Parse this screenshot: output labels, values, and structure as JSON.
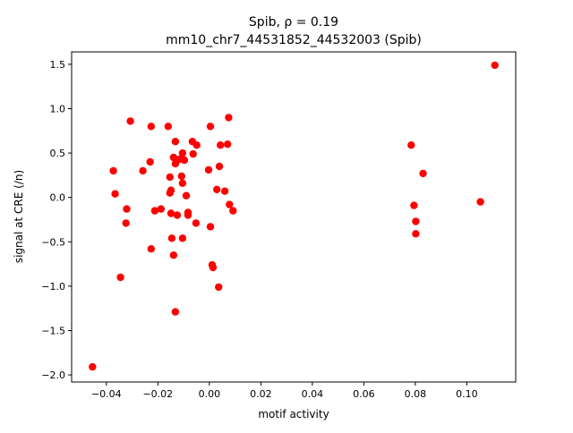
{
  "chart_data": {
    "type": "scatter",
    "title_line1": "Spib, ρ = 0.19",
    "title_line2": "mm10_chr7_44531852_44532003 (Spib)",
    "xlabel": "motif activity",
    "ylabel": "signal at CRE (/n)",
    "xlim": [
      -0.0535,
      0.119
    ],
    "ylim": [
      -2.08,
      1.64
    ],
    "xticks": [
      -0.04,
      -0.02,
      0.0,
      0.02,
      0.04,
      0.06,
      0.08,
      0.1
    ],
    "xtick_labels": [
      "−0.04",
      "−0.02",
      "0.00",
      "0.02",
      "0.04",
      "0.06",
      "0.08",
      "0.10"
    ],
    "yticks": [
      -2.0,
      -1.5,
      -1.0,
      -0.5,
      0.0,
      0.5,
      1.0,
      1.5
    ],
    "ytick_labels": [
      "−2.0",
      "−1.5",
      "−1.0",
      "−0.5",
      "0.0",
      "0.5",
      "1.0",
      "1.5"
    ],
    "grid": false,
    "marker_color": "#ff0000",
    "points": [
      {
        "x": -0.0454,
        "y": -1.91
      },
      {
        "x": -0.0373,
        "y": 0.3
      },
      {
        "x": -0.0366,
        "y": 0.04
      },
      {
        "x": -0.0345,
        "y": -0.9
      },
      {
        "x": -0.0324,
        "y": -0.29
      },
      {
        "x": -0.0321,
        "y": -0.13
      },
      {
        "x": -0.0307,
        "y": 0.86
      },
      {
        "x": -0.0258,
        "y": 0.3
      },
      {
        "x": -0.023,
        "y": 0.4
      },
      {
        "x": -0.0226,
        "y": 0.8
      },
      {
        "x": -0.0226,
        "y": -0.58
      },
      {
        "x": -0.0212,
        "y": -0.15
      },
      {
        "x": -0.0188,
        "y": -0.13
      },
      {
        "x": -0.016,
        "y": 0.8
      },
      {
        "x": -0.0153,
        "y": 0.23
      },
      {
        "x": -0.0153,
        "y": 0.05
      },
      {
        "x": -0.0149,
        "y": 0.08
      },
      {
        "x": -0.0149,
        "y": -0.18
      },
      {
        "x": -0.0146,
        "y": -0.46
      },
      {
        "x": -0.0139,
        "y": -0.65
      },
      {
        "x": -0.0139,
        "y": 0.45
      },
      {
        "x": -0.0132,
        "y": 0.63
      },
      {
        "x": -0.0132,
        "y": 0.38
      },
      {
        "x": -0.0132,
        "y": -1.29
      },
      {
        "x": -0.0125,
        "y": -0.2
      },
      {
        "x": -0.0115,
        "y": 0.43
      },
      {
        "x": -0.0108,
        "y": 0.24
      },
      {
        "x": -0.0104,
        "y": 0.5
      },
      {
        "x": -0.0104,
        "y": 0.16
      },
      {
        "x": -0.0104,
        "y": -0.46
      },
      {
        "x": -0.0097,
        "y": 0.42
      },
      {
        "x": -0.009,
        "y": 0.02
      },
      {
        "x": -0.0083,
        "y": -0.17
      },
      {
        "x": -0.0083,
        "y": -0.2
      },
      {
        "x": -0.0066,
        "y": 0.63
      },
      {
        "x": -0.0063,
        "y": 0.49
      },
      {
        "x": -0.0052,
        "y": -0.29
      },
      {
        "x": -0.0049,
        "y": 0.59
      },
      {
        "x": -0.0003,
        "y": 0.31
      },
      {
        "x": 0.0004,
        "y": 0.8
      },
      {
        "x": 0.0004,
        "y": -0.33
      },
      {
        "x": 0.0011,
        "y": -0.76
      },
      {
        "x": 0.0014,
        "y": -0.79
      },
      {
        "x": 0.0029,
        "y": 0.09
      },
      {
        "x": 0.0036,
        "y": -1.01
      },
      {
        "x": 0.0039,
        "y": 0.35
      },
      {
        "x": 0.0043,
        "y": 0.59
      },
      {
        "x": 0.006,
        "y": 0.07
      },
      {
        "x": 0.0071,
        "y": 0.6
      },
      {
        "x": 0.0075,
        "y": 0.9
      },
      {
        "x": 0.0078,
        "y": -0.08
      },
      {
        "x": 0.0092,
        "y": -0.15
      },
      {
        "x": 0.0784,
        "y": 0.59
      },
      {
        "x": 0.0795,
        "y": -0.09
      },
      {
        "x": 0.0802,
        "y": -0.27
      },
      {
        "x": 0.0802,
        "y": -0.41
      },
      {
        "x": 0.083,
        "y": 0.27
      },
      {
        "x": 0.1053,
        "y": -0.05
      },
      {
        "x": 0.1109,
        "y": 1.49
      }
    ]
  }
}
